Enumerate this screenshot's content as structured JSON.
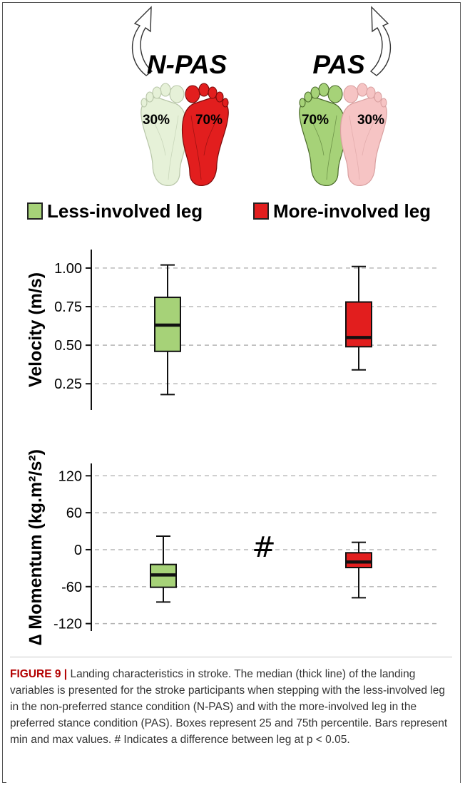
{
  "header": {
    "conditions": [
      {
        "label": "N-PAS",
        "left_pct": "30%",
        "right_pct": "70%"
      },
      {
        "label": "PAS",
        "left_pct": "70%",
        "right_pct": "30%"
      }
    ]
  },
  "legend": {
    "items": [
      {
        "label": "Less-involved leg",
        "color": "#a6d278"
      },
      {
        "label": "More-involved leg",
        "color": "#e21e1e"
      }
    ]
  },
  "colors": {
    "less": "#a6d278",
    "less_faded": "#e6f1d8",
    "more": "#e21e1e",
    "more_faded": "#f6c4c4",
    "grid": "#b3b3b3"
  },
  "chart_data": [
    {
      "type": "box",
      "ylabel": "Velocity (m/s)",
      "yticks": [
        0.25,
        0.5,
        0.75,
        1.0
      ],
      "yticklabels": [
        "0.25",
        "0.50",
        "0.75",
        "1.00"
      ],
      "ylim": [
        0.08,
        1.12
      ],
      "grid": true,
      "boxes": [
        {
          "group": "Less-involved leg",
          "min": 0.18,
          "q1": 0.46,
          "median": 0.63,
          "q3": 0.81,
          "max": 1.02
        },
        {
          "group": "More-involved leg",
          "min": 0.34,
          "q1": 0.49,
          "median": 0.55,
          "q3": 0.78,
          "max": 1.01
        }
      ],
      "annotation": ""
    },
    {
      "type": "box",
      "ylabel": "∆ Momentum (kg.m²/s²)",
      "yticks": [
        -120,
        -60,
        0,
        60,
        120
      ],
      "yticklabels": [
        "-120",
        "-60",
        "0",
        "60",
        "120"
      ],
      "ylim": [
        -132,
        140
      ],
      "grid": true,
      "boxes": [
        {
          "group": "Less-involved leg",
          "min": -85,
          "q1": -61,
          "median": -41,
          "q3": -24,
          "max": 22
        },
        {
          "group": "More-involved leg",
          "min": -78,
          "q1": -29,
          "median": -20,
          "q3": -5,
          "max": 12
        }
      ],
      "annotation": "#"
    }
  ],
  "caption": {
    "figure_label": "FIGURE 9 |",
    "text": " Landing characteristics in stroke. The median (thick line) of the landing variables is presented for the stroke participants when stepping with the less-involved leg in the non-preferred stance condition (N-PAS) and with the more-involved leg in the preferred stance condition (PAS). Boxes represent 25 and 75th percentile. Bars represent min and max values. # Indicates a difference between leg at p < 0.05."
  }
}
